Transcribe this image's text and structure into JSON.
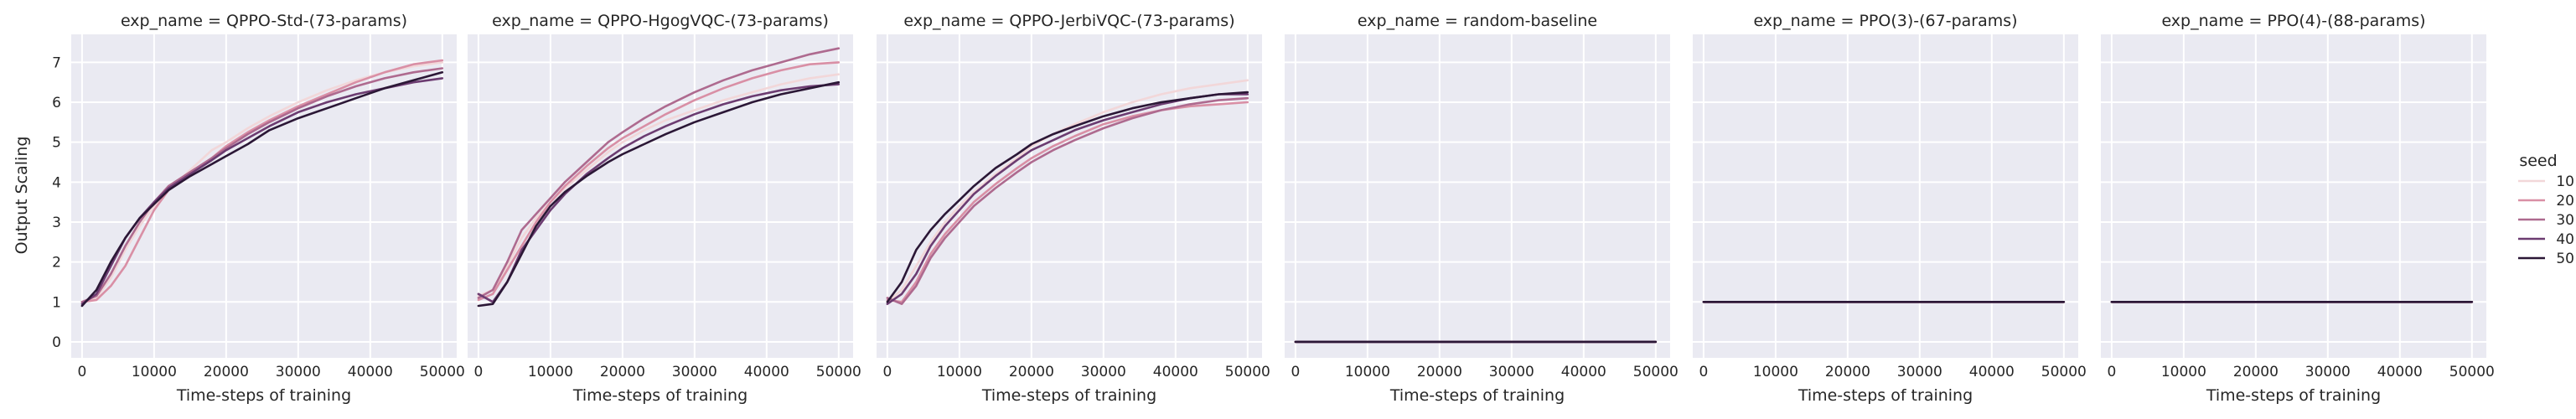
{
  "chart_data": {
    "type": "line",
    "legend": {
      "title": "seed",
      "placement": "right",
      "entries": [
        {
          "label": "10",
          "color": "#f2d7d9"
        },
        {
          "label": "20",
          "color": "#d98fa5"
        },
        {
          "label": "30",
          "color": "#ae6a8f"
        },
        {
          "label": "40",
          "color": "#6c3c71"
        },
        {
          "label": "50",
          "color": "#2b1736"
        }
      ]
    },
    "ylabel": "Output Scaling",
    "xlabel": "Time-steps of training",
    "xlim": [
      -1500,
      52000
    ],
    "ylim": [
      -0.4,
      7.7
    ],
    "xticks": [
      0,
      10000,
      20000,
      30000,
      40000,
      50000
    ],
    "yticks": [
      0,
      1,
      2,
      3,
      4,
      5,
      6,
      7
    ],
    "grid": true,
    "panels": [
      {
        "title": "exp_name = QPPO-Std-(73-params)",
        "x": [
          0,
          2000,
          4000,
          6000,
          8000,
          10000,
          12000,
          15000,
          18000,
          20000,
          23000,
          26000,
          30000,
          34000,
          38000,
          42000,
          46000,
          50000
        ],
        "series": [
          {
            "name": "10",
            "values": [
              1.0,
              1.1,
              1.6,
              2.3,
              2.9,
              3.4,
              3.8,
              4.3,
              4.8,
              5.0,
              5.35,
              5.65,
              6.0,
              6.3,
              6.55,
              6.75,
              6.9,
              7.0
            ]
          },
          {
            "name": "20",
            "values": [
              1.0,
              1.05,
              1.4,
              1.9,
              2.6,
              3.3,
              3.8,
              4.2,
              4.6,
              4.9,
              5.25,
              5.55,
              5.9,
              6.2,
              6.5,
              6.75,
              6.95,
              7.05
            ]
          },
          {
            "name": "30",
            "values": [
              1.0,
              1.15,
              1.7,
              2.4,
              3.0,
              3.5,
              3.9,
              4.25,
              4.6,
              4.85,
              5.2,
              5.5,
              5.85,
              6.15,
              6.4,
              6.6,
              6.75,
              6.85
            ]
          },
          {
            "name": "40",
            "values": [
              0.95,
              1.2,
              1.9,
              2.6,
              3.1,
              3.5,
              3.85,
              4.2,
              4.55,
              4.8,
              5.1,
              5.4,
              5.75,
              6.0,
              6.2,
              6.35,
              6.5,
              6.6
            ]
          },
          {
            "name": "50",
            "values": [
              0.9,
              1.3,
              2.0,
              2.6,
              3.1,
              3.45,
              3.8,
              4.15,
              4.45,
              4.65,
              4.95,
              5.3,
              5.6,
              5.85,
              6.1,
              6.35,
              6.55,
              6.75
            ]
          }
        ]
      },
      {
        "title": "exp_name = QPPO-HgogVQC-(73-params)",
        "x": [
          0,
          2000,
          4000,
          6000,
          8000,
          10000,
          12000,
          15000,
          18000,
          20000,
          23000,
          26000,
          30000,
          34000,
          38000,
          42000,
          46000,
          50000
        ],
        "series": [
          {
            "name": "10",
            "values": [
              1.15,
              1.3,
              1.9,
              2.6,
              3.1,
              3.5,
              3.85,
              4.3,
              4.75,
              5.0,
              5.3,
              5.55,
              5.8,
              6.05,
              6.25,
              6.45,
              6.6,
              6.7
            ]
          },
          {
            "name": "20",
            "values": [
              1.05,
              1.2,
              1.8,
              2.4,
              3.0,
              3.5,
              3.9,
              4.4,
              4.85,
              5.1,
              5.4,
              5.7,
              6.05,
              6.35,
              6.6,
              6.8,
              6.95,
              7.0
            ]
          },
          {
            "name": "30",
            "values": [
              1.1,
              1.3,
              2.0,
              2.8,
              3.2,
              3.6,
              4.0,
              4.5,
              5.0,
              5.25,
              5.6,
              5.9,
              6.25,
              6.55,
              6.8,
              7.0,
              7.2,
              7.35
            ]
          },
          {
            "name": "40",
            "values": [
              1.2,
              1.0,
              1.5,
              2.3,
              2.8,
              3.3,
              3.7,
              4.2,
              4.6,
              4.85,
              5.15,
              5.4,
              5.7,
              5.95,
              6.15,
              6.3,
              6.4,
              6.45
            ]
          },
          {
            "name": "50",
            "values": [
              0.9,
              0.95,
              1.5,
              2.2,
              2.9,
              3.4,
              3.75,
              4.15,
              4.5,
              4.7,
              4.95,
              5.2,
              5.5,
              5.75,
              6.0,
              6.2,
              6.35,
              6.5
            ]
          }
        ]
      },
      {
        "title": "exp_name = QPPO-JerbiVQC-(73-params)",
        "x": [
          0,
          2000,
          4000,
          6000,
          8000,
          10000,
          12000,
          15000,
          18000,
          20000,
          23000,
          26000,
          30000,
          34000,
          38000,
          42000,
          46000,
          50000
        ],
        "series": [
          {
            "name": "10",
            "values": [
              1.0,
              1.3,
              1.9,
              2.5,
              3.0,
              3.4,
              3.75,
              4.2,
              4.6,
              4.9,
              5.2,
              5.45,
              5.75,
              6.0,
              6.2,
              6.35,
              6.45,
              6.55
            ]
          },
          {
            "name": "20",
            "values": [
              1.05,
              1.0,
              1.5,
              2.2,
              2.7,
              3.1,
              3.5,
              3.95,
              4.35,
              4.6,
              4.9,
              5.15,
              5.45,
              5.65,
              5.8,
              5.9,
              5.95,
              6.0
            ]
          },
          {
            "name": "30",
            "values": [
              1.1,
              0.95,
              1.4,
              2.1,
              2.6,
              3.0,
              3.4,
              3.85,
              4.25,
              4.5,
              4.8,
              5.05,
              5.35,
              5.6,
              5.8,
              5.95,
              6.05,
              6.1
            ]
          },
          {
            "name": "40",
            "values": [
              0.95,
              1.2,
              1.7,
              2.4,
              2.9,
              3.3,
              3.7,
              4.15,
              4.55,
              4.8,
              5.05,
              5.3,
              5.55,
              5.75,
              5.95,
              6.1,
              6.2,
              6.2
            ]
          },
          {
            "name": "50",
            "values": [
              1.0,
              1.5,
              2.3,
              2.8,
              3.2,
              3.55,
              3.9,
              4.35,
              4.7,
              4.95,
              5.2,
              5.4,
              5.65,
              5.85,
              6.0,
              6.1,
              6.2,
              6.25
            ]
          }
        ]
      },
      {
        "title": "exp_name = random-baseline",
        "x": [
          0,
          50000
        ],
        "series": [
          {
            "name": "10",
            "values": [
              0,
              0
            ]
          },
          {
            "name": "20",
            "values": [
              0,
              0
            ]
          },
          {
            "name": "30",
            "values": [
              0,
              0
            ]
          },
          {
            "name": "40",
            "values": [
              0,
              0
            ]
          },
          {
            "name": "50",
            "values": [
              0,
              0
            ]
          }
        ]
      },
      {
        "title": "exp_name = PPO(3)-(67-params)",
        "x": [
          0,
          50000
        ],
        "series": [
          {
            "name": "10",
            "values": [
              1,
              1
            ]
          },
          {
            "name": "20",
            "values": [
              1,
              1
            ]
          },
          {
            "name": "30",
            "values": [
              1,
              1
            ]
          },
          {
            "name": "40",
            "values": [
              1,
              1
            ]
          },
          {
            "name": "50",
            "values": [
              1,
              1
            ]
          }
        ]
      },
      {
        "title": "exp_name = PPO(4)-(88-params)",
        "x": [
          0,
          50000
        ],
        "series": [
          {
            "name": "10",
            "values": [
              1,
              1
            ]
          },
          {
            "name": "20",
            "values": [
              1,
              1
            ]
          },
          {
            "name": "30",
            "values": [
              1,
              1
            ]
          },
          {
            "name": "40",
            "values": [
              1,
              1
            ]
          },
          {
            "name": "50",
            "values": [
              1,
              1
            ]
          }
        ]
      }
    ]
  }
}
